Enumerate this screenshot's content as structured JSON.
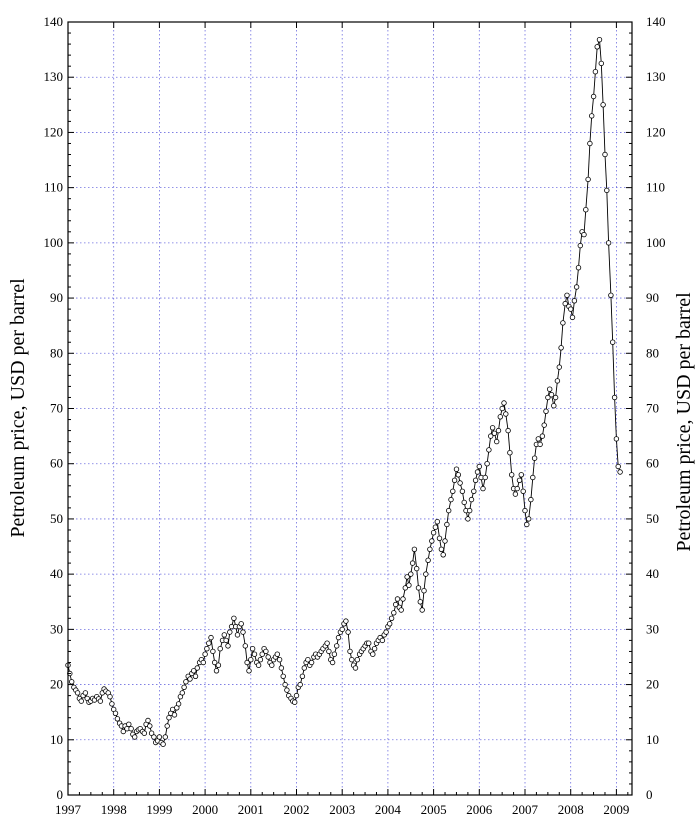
{
  "chart_data": {
    "type": "line",
    "title": "",
    "xlabel": "",
    "ylabel_left": "Petroleum price,  USD per barrel",
    "ylabel_right": "Petroleum price,  USD per barrel",
    "xlim": [
      1997,
      2009.3
    ],
    "ylim": [
      0,
      140
    ],
    "grid": true,
    "legend": "none",
    "colors": {
      "line": "#000000",
      "marker_fill": "#ffffff",
      "grid": "#6f6fe0"
    },
    "x_ticks": [
      1997,
      1998,
      1999,
      2000,
      2001,
      2002,
      2003,
      2004,
      2005,
      2006,
      2007,
      2008,
      2009
    ],
    "x_tick_labels": [
      "1997",
      "1998",
      "1999",
      "2000",
      "2001",
      "2002",
      "2003",
      "2004",
      "2005",
      "2006",
      "2007",
      "2008",
      "2009"
    ],
    "y_ticks": [
      0,
      10,
      20,
      30,
      40,
      50,
      60,
      70,
      80,
      90,
      100,
      110,
      120,
      130,
      140
    ],
    "y_tick_labels": [
      "0",
      "10",
      "20",
      "30",
      "40",
      "50",
      "60",
      "70",
      "80",
      "90",
      "100",
      "110",
      "120",
      "130",
      "140"
    ],
    "series": [
      {
        "marker": "circle-open",
        "points": [
          [
            1997.0,
            23.5
          ],
          [
            1997.04,
            22.0
          ],
          [
            1997.08,
            20.5
          ],
          [
            1997.13,
            19.5
          ],
          [
            1997.17,
            19.0
          ],
          [
            1997.21,
            18.5
          ],
          [
            1997.25,
            17.5
          ],
          [
            1997.29,
            17.0
          ],
          [
            1997.33,
            18.0
          ],
          [
            1997.38,
            18.5
          ],
          [
            1997.42,
            17.5
          ],
          [
            1997.46,
            16.8
          ],
          [
            1997.5,
            17.0
          ],
          [
            1997.54,
            17.5
          ],
          [
            1997.58,
            17.2
          ],
          [
            1997.63,
            17.8
          ],
          [
            1997.67,
            17.4
          ],
          [
            1997.71,
            17.0
          ],
          [
            1997.75,
            18.5
          ],
          [
            1997.79,
            19.2
          ],
          [
            1997.83,
            18.8
          ],
          [
            1997.88,
            18.5
          ],
          [
            1997.92,
            17.8
          ],
          [
            1997.96,
            16.5
          ],
          [
            1998.0,
            15.5
          ],
          [
            1998.04,
            14.8
          ],
          [
            1998.08,
            13.8
          ],
          [
            1998.13,
            13.0
          ],
          [
            1998.17,
            12.5
          ],
          [
            1998.21,
            11.5
          ],
          [
            1998.25,
            12.5
          ],
          [
            1998.29,
            12.0
          ],
          [
            1998.33,
            12.8
          ],
          [
            1998.38,
            12.0
          ],
          [
            1998.42,
            11.0
          ],
          [
            1998.46,
            10.5
          ],
          [
            1998.5,
            11.5
          ],
          [
            1998.54,
            11.8
          ],
          [
            1998.58,
            12.0
          ],
          [
            1998.63,
            11.5
          ],
          [
            1998.67,
            11.2
          ],
          [
            1998.71,
            12.8
          ],
          [
            1998.75,
            13.5
          ],
          [
            1998.79,
            12.5
          ],
          [
            1998.83,
            11.2
          ],
          [
            1998.88,
            10.5
          ],
          [
            1998.92,
            9.5
          ],
          [
            1998.96,
            9.8
          ],
          [
            1999.0,
            10.5
          ],
          [
            1999.04,
            9.5
          ],
          [
            1999.08,
            9.2
          ],
          [
            1999.13,
            10.5
          ],
          [
            1999.17,
            12.5
          ],
          [
            1999.21,
            14.0
          ],
          [
            1999.25,
            14.8
          ],
          [
            1999.29,
            15.5
          ],
          [
            1999.33,
            14.5
          ],
          [
            1999.38,
            15.8
          ],
          [
            1999.42,
            16.5
          ],
          [
            1999.46,
            17.8
          ],
          [
            1999.5,
            18.5
          ],
          [
            1999.54,
            19.5
          ],
          [
            1999.58,
            20.5
          ],
          [
            1999.63,
            21.5
          ],
          [
            1999.67,
            21.0
          ],
          [
            1999.71,
            22.0
          ],
          [
            1999.75,
            22.5
          ],
          [
            1999.79,
            21.5
          ],
          [
            1999.83,
            23.0
          ],
          [
            1999.88,
            24.0
          ],
          [
            1999.92,
            24.5
          ],
          [
            1999.96,
            24.0
          ],
          [
            2000.0,
            25.5
          ],
          [
            2000.04,
            26.5
          ],
          [
            2000.08,
            27.5
          ],
          [
            2000.13,
            28.5
          ],
          [
            2000.17,
            26.0
          ],
          [
            2000.21,
            24.0
          ],
          [
            2000.25,
            22.5
          ],
          [
            2000.29,
            23.5
          ],
          [
            2000.33,
            26.5
          ],
          [
            2000.38,
            28.0
          ],
          [
            2000.42,
            29.0
          ],
          [
            2000.46,
            28.0
          ],
          [
            2000.5,
            27.0
          ],
          [
            2000.54,
            29.5
          ],
          [
            2000.58,
            30.5
          ],
          [
            2000.63,
            32.0
          ],
          [
            2000.67,
            30.5
          ],
          [
            2000.71,
            29.0
          ],
          [
            2000.75,
            30.5
          ],
          [
            2000.79,
            31.0
          ],
          [
            2000.83,
            29.5
          ],
          [
            2000.88,
            27.0
          ],
          [
            2000.92,
            24.0
          ],
          [
            2000.96,
            22.5
          ],
          [
            2001.0,
            24.5
          ],
          [
            2001.04,
            26.5
          ],
          [
            2001.08,
            25.5
          ],
          [
            2001.13,
            24.0
          ],
          [
            2001.17,
            23.5
          ],
          [
            2001.21,
            24.5
          ],
          [
            2001.25,
            25.5
          ],
          [
            2001.29,
            26.5
          ],
          [
            2001.33,
            26.0
          ],
          [
            2001.38,
            25.0
          ],
          [
            2001.42,
            24.0
          ],
          [
            2001.46,
            23.5
          ],
          [
            2001.5,
            24.5
          ],
          [
            2001.54,
            25.0
          ],
          [
            2001.58,
            25.5
          ],
          [
            2001.63,
            24.5
          ],
          [
            2001.67,
            23.0
          ],
          [
            2001.71,
            21.5
          ],
          [
            2001.75,
            20.0
          ],
          [
            2001.79,
            19.0
          ],
          [
            2001.83,
            18.0
          ],
          [
            2001.88,
            17.5
          ],
          [
            2001.92,
            17.0
          ],
          [
            2001.96,
            16.8
          ],
          [
            2002.0,
            18.0
          ],
          [
            2002.04,
            19.5
          ],
          [
            2002.08,
            20.0
          ],
          [
            2002.13,
            21.5
          ],
          [
            2002.17,
            23.0
          ],
          [
            2002.21,
            24.0
          ],
          [
            2002.25,
            24.5
          ],
          [
            2002.29,
            23.5
          ],
          [
            2002.33,
            24.0
          ],
          [
            2002.38,
            25.0
          ],
          [
            2002.42,
            25.5
          ],
          [
            2002.46,
            25.0
          ],
          [
            2002.5,
            25.5
          ],
          [
            2002.54,
            26.0
          ],
          [
            2002.58,
            26.5
          ],
          [
            2002.63,
            27.0
          ],
          [
            2002.67,
            27.5
          ],
          [
            2002.71,
            26.0
          ],
          [
            2002.75,
            24.5
          ],
          [
            2002.79,
            24.0
          ],
          [
            2002.83,
            25.5
          ],
          [
            2002.88,
            27.0
          ],
          [
            2002.92,
            28.5
          ],
          [
            2002.96,
            29.5
          ],
          [
            2003.0,
            30.0
          ],
          [
            2003.04,
            31.0
          ],
          [
            2003.08,
            31.5
          ],
          [
            2003.13,
            29.5
          ],
          [
            2003.17,
            26.0
          ],
          [
            2003.21,
            24.5
          ],
          [
            2003.25,
            23.5
          ],
          [
            2003.29,
            23.0
          ],
          [
            2003.33,
            24.5
          ],
          [
            2003.38,
            25.5
          ],
          [
            2003.42,
            26.0
          ],
          [
            2003.46,
            26.5
          ],
          [
            2003.5,
            27.0
          ],
          [
            2003.54,
            27.5
          ],
          [
            2003.58,
            27.5
          ],
          [
            2003.63,
            26.0
          ],
          [
            2003.67,
            25.5
          ],
          [
            2003.71,
            26.5
          ],
          [
            2003.75,
            27.5
          ],
          [
            2003.79,
            28.0
          ],
          [
            2003.83,
            28.5
          ],
          [
            2003.88,
            28.0
          ],
          [
            2003.92,
            29.0
          ],
          [
            2003.96,
            29.5
          ],
          [
            2004.0,
            30.5
          ],
          [
            2004.04,
            31.0
          ],
          [
            2004.08,
            32.0
          ],
          [
            2004.13,
            33.0
          ],
          [
            2004.17,
            34.5
          ],
          [
            2004.21,
            35.5
          ],
          [
            2004.25,
            34.0
          ],
          [
            2004.29,
            33.5
          ],
          [
            2004.33,
            35.5
          ],
          [
            2004.38,
            37.5
          ],
          [
            2004.42,
            39.5
          ],
          [
            2004.46,
            38.0
          ],
          [
            2004.5,
            40.0
          ],
          [
            2004.54,
            42.0
          ],
          [
            2004.58,
            44.5
          ],
          [
            2004.63,
            41.0
          ],
          [
            2004.67,
            37.5
          ],
          [
            2004.71,
            35.0
          ],
          [
            2004.75,
            33.5
          ],
          [
            2004.79,
            37.0
          ],
          [
            2004.83,
            40.0
          ],
          [
            2004.88,
            42.5
          ],
          [
            2004.92,
            44.5
          ],
          [
            2004.96,
            46.0
          ],
          [
            2005.0,
            47.5
          ],
          [
            2005.04,
            48.5
          ],
          [
            2005.08,
            49.5
          ],
          [
            2005.13,
            46.5
          ],
          [
            2005.17,
            44.5
          ],
          [
            2005.21,
            43.5
          ],
          [
            2005.25,
            46.0
          ],
          [
            2005.29,
            49.0
          ],
          [
            2005.33,
            51.5
          ],
          [
            2005.38,
            53.5
          ],
          [
            2005.42,
            55.0
          ],
          [
            2005.46,
            57.0
          ],
          [
            2005.5,
            59.0
          ],
          [
            2005.54,
            58.0
          ],
          [
            2005.58,
            56.5
          ],
          [
            2005.63,
            55.0
          ],
          [
            2005.67,
            53.0
          ],
          [
            2005.71,
            51.5
          ],
          [
            2005.75,
            50.0
          ],
          [
            2005.79,
            51.5
          ],
          [
            2005.83,
            53.5
          ],
          [
            2005.88,
            55.0
          ],
          [
            2005.92,
            57.0
          ],
          [
            2005.96,
            58.5
          ],
          [
            2006.0,
            59.5
          ],
          [
            2006.04,
            57.5
          ],
          [
            2006.08,
            55.5
          ],
          [
            2006.13,
            57.5
          ],
          [
            2006.17,
            60.0
          ],
          [
            2006.21,
            62.5
          ],
          [
            2006.25,
            65.0
          ],
          [
            2006.29,
            66.5
          ],
          [
            2006.33,
            65.5
          ],
          [
            2006.38,
            64.0
          ],
          [
            2006.42,
            66.0
          ],
          [
            2006.46,
            68.5
          ],
          [
            2006.5,
            70.0
          ],
          [
            2006.54,
            71.0
          ],
          [
            2006.58,
            69.0
          ],
          [
            2006.63,
            66.0
          ],
          [
            2006.67,
            62.0
          ],
          [
            2006.71,
            58.0
          ],
          [
            2006.75,
            55.5
          ],
          [
            2006.79,
            54.5
          ],
          [
            2006.83,
            55.5
          ],
          [
            2006.88,
            57.0
          ],
          [
            2006.92,
            58.0
          ],
          [
            2006.96,
            55.0
          ],
          [
            2007.0,
            51.5
          ],
          [
            2007.04,
            49.0
          ],
          [
            2007.08,
            50.0
          ],
          [
            2007.13,
            53.5
          ],
          [
            2007.17,
            57.5
          ],
          [
            2007.21,
            61.0
          ],
          [
            2007.25,
            63.5
          ],
          [
            2007.29,
            64.5
          ],
          [
            2007.33,
            63.5
          ],
          [
            2007.38,
            65.0
          ],
          [
            2007.42,
            67.0
          ],
          [
            2007.46,
            69.5
          ],
          [
            2007.5,
            72.0
          ],
          [
            2007.54,
            73.5
          ],
          [
            2007.58,
            72.5
          ],
          [
            2007.63,
            70.5
          ],
          [
            2007.67,
            72.0
          ],
          [
            2007.71,
            75.0
          ],
          [
            2007.75,
            77.5
          ],
          [
            2007.79,
            81.0
          ],
          [
            2007.83,
            85.5
          ],
          [
            2007.88,
            89.0
          ],
          [
            2007.92,
            90.5
          ],
          [
            2007.96,
            88.5
          ],
          [
            2008.0,
            88.0
          ],
          [
            2008.04,
            86.5
          ],
          [
            2008.08,
            89.5
          ],
          [
            2008.13,
            92.0
          ],
          [
            2008.17,
            95.5
          ],
          [
            2008.21,
            99.5
          ],
          [
            2008.25,
            102.0
          ],
          [
            2008.29,
            101.5
          ],
          [
            2008.33,
            106.0
          ],
          [
            2008.38,
            111.5
          ],
          [
            2008.42,
            118.0
          ],
          [
            2008.46,
            123.0
          ],
          [
            2008.5,
            126.5
          ],
          [
            2008.54,
            131.0
          ],
          [
            2008.58,
            135.5
          ],
          [
            2008.63,
            136.8
          ],
          [
            2008.67,
            132.5
          ],
          [
            2008.71,
            125.0
          ],
          [
            2008.75,
            116.0
          ],
          [
            2008.79,
            109.5
          ],
          [
            2008.83,
            100.0
          ],
          [
            2008.88,
            90.5
          ],
          [
            2008.92,
            82.0
          ],
          [
            2008.96,
            72.0
          ],
          [
            2009.0,
            64.5
          ],
          [
            2009.04,
            59.5
          ],
          [
            2009.08,
            58.5
          ]
        ]
      }
    ]
  }
}
